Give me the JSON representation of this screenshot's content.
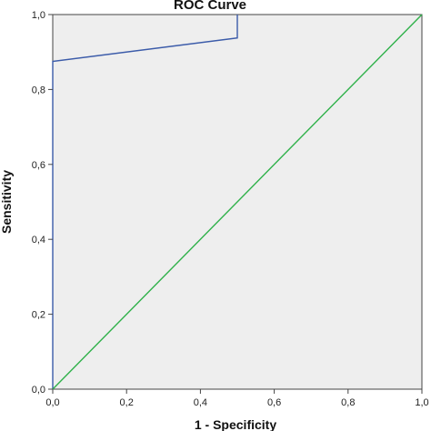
{
  "chart_data": {
    "type": "line",
    "title": "ROC Curve",
    "xlabel": "1 - Specificity",
    "ylabel": "Sensitivity",
    "xlim": [
      0,
      1
    ],
    "ylim": [
      0,
      1
    ],
    "x_ticks": [
      "0,0",
      "0,2",
      "0,4",
      "0,6",
      "0,8",
      "1,0"
    ],
    "y_ticks": [
      "0,0",
      "0,2",
      "0,4",
      "0,6",
      "0,8",
      "1,0"
    ],
    "grid": false,
    "series": [
      {
        "x": [
          0.0,
          0.0,
          0.5,
          0.5,
          0.5
        ],
        "y": [
          0.0,
          0.875,
          0.9375,
          0.9375,
          1.0
        ],
        "color": "#3b5ba9"
      },
      {
        "x": [
          0.0,
          1.0
        ],
        "y": [
          0.0,
          1.0
        ],
        "color": "#2fb14a"
      }
    ],
    "plot_background": "#eeeeee"
  }
}
